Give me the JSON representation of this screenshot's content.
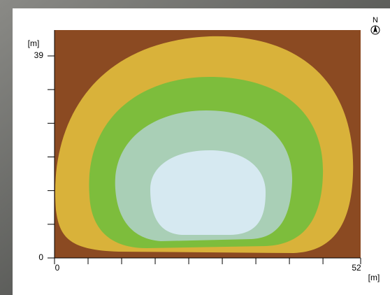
{
  "chart_data": {
    "type": "contour",
    "y_label": "[m]",
    "x_label": "[m]",
    "north_label": "N",
    "xlim": [
      0,
      52
    ],
    "ylim": [
      0,
      39
    ],
    "xticks": [
      0,
      52
    ],
    "yticks": [
      0,
      39
    ],
    "xminor_ticks": [
      5.7,
      11.4,
      17.1,
      22.8,
      28.5,
      34.2,
      39.9,
      45.6
    ],
    "yminor_ticks": [
      6.5,
      13,
      19.5,
      26,
      32.5
    ]
  }
}
